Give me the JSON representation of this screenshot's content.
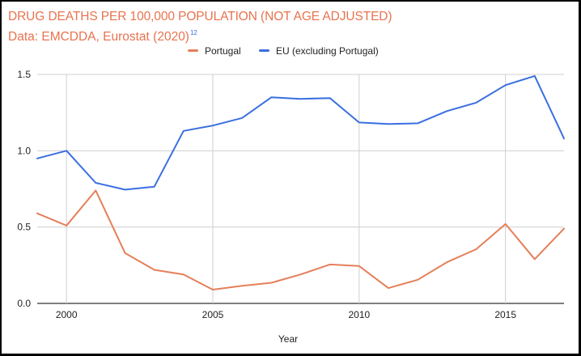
{
  "colors": {
    "title": "#e8734f",
    "portugal": "#e57f5a",
    "eu": "#3a6fe0",
    "grid": "#cfcfcf",
    "baseline": "#333333"
  },
  "header": {
    "title": "DRUG DEATHS PER 100,000 POPULATION (NOT AGE ADJUSTED)",
    "source": "Data: EMCDDA, Eurostat (2020)",
    "footnote": "12"
  },
  "chart_data": {
    "type": "line",
    "x": [
      1999,
      2000,
      2001,
      2002,
      2003,
      2004,
      2005,
      2006,
      2007,
      2008,
      2009,
      2010,
      2011,
      2012,
      2013,
      2014,
      2015,
      2016,
      2017
    ],
    "series": [
      {
        "name": "Portugal",
        "values": [
          0.59,
          0.51,
          0.74,
          0.33,
          0.22,
          0.19,
          0.09,
          0.115,
          0.135,
          0.19,
          0.255,
          0.245,
          0.1,
          0.155,
          0.27,
          0.355,
          0.52,
          0.29,
          0.49
        ]
      },
      {
        "name": "EU (excluding Portugal)",
        "values": [
          0.95,
          1.0,
          0.79,
          0.745,
          0.765,
          1.13,
          1.165,
          1.215,
          1.35,
          1.34,
          1.345,
          1.185,
          1.175,
          1.18,
          1.26,
          1.315,
          1.43,
          1.49,
          1.08
        ]
      }
    ],
    "xlabel": "Year",
    "ylabel": "",
    "xlim": [
      1999,
      2017
    ],
    "ylim": [
      0,
      1.5
    ],
    "x_ticks": [
      "2000",
      "2005",
      "2010",
      "2015"
    ],
    "y_ticks": [
      "0.0",
      "0.5",
      "1.0",
      "1.5"
    ],
    "grid": true,
    "legend_position": "top-center"
  }
}
